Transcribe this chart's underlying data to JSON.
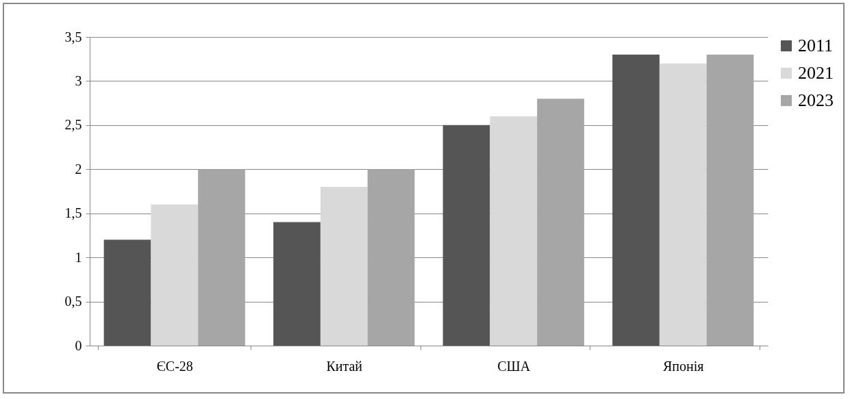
{
  "chart_data": {
    "type": "bar",
    "categories": [
      "ЄС-28",
      "Китай",
      "США",
      "Японія"
    ],
    "series": [
      {
        "name": "2011",
        "color": "#555555",
        "values": [
          1.2,
          1.4,
          2.5,
          3.3
        ]
      },
      {
        "name": "2021",
        "color": "#d9d9d9",
        "values": [
          1.6,
          1.8,
          2.6,
          3.2
        ]
      },
      {
        "name": "2023",
        "color": "#a6a6a6",
        "values": [
          2.0,
          2.0,
          2.8,
          3.3
        ]
      }
    ],
    "ylim": [
      0,
      3.5
    ],
    "yticks": [
      0,
      {
        "value": 0.5,
        "label": "0,5"
      },
      1,
      {
        "value": 1.5,
        "label": "1,5"
      },
      2,
      {
        "value": 2.5,
        "label": "2,5"
      },
      3,
      {
        "value": 3.5,
        "label": "3,5"
      }
    ],
    "grid": "y",
    "legend": "right"
  }
}
